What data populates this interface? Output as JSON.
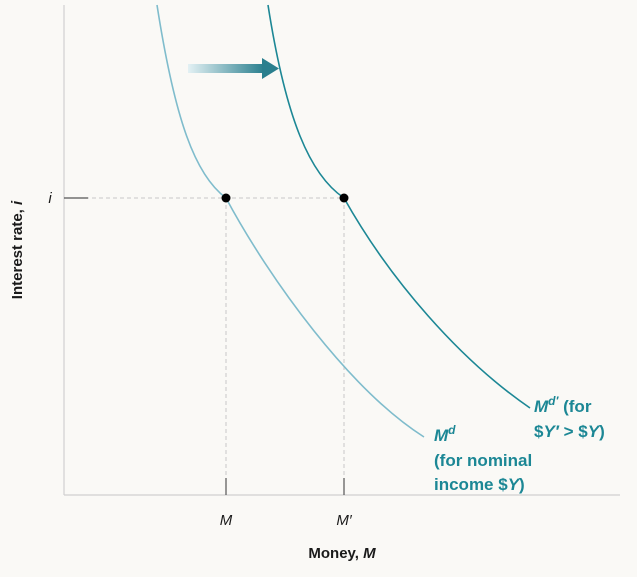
{
  "diagram": {
    "ylabel": "Interest rate, ",
    "ylabel_var": "i",
    "xlabel": "Money, ",
    "xlabel_var": "M",
    "y_tick": "i",
    "x_ticks": [
      "M",
      "M′"
    ],
    "curve_md": {
      "name": "M",
      "sup": "d",
      "line1": "(for nominal",
      "line2_pre": "income $",
      "line2_var": "Y",
      "line2_post": ")"
    },
    "curve_md_prime": {
      "name": "M",
      "sup": "d′",
      "after": " (for",
      "line2_a": "$",
      "line2_b": "Y′",
      "line2_c": " > $",
      "line2_d": "Y",
      "line2_e": ")"
    },
    "shift": "right",
    "colors": {
      "curve_md": "#7fbccc",
      "curve_md_prime": "#1c8795",
      "label": "#1c8795",
      "arrow": "#2a7f8e",
      "guide": "#c8c8c8",
      "point": "#000000"
    }
  }
}
